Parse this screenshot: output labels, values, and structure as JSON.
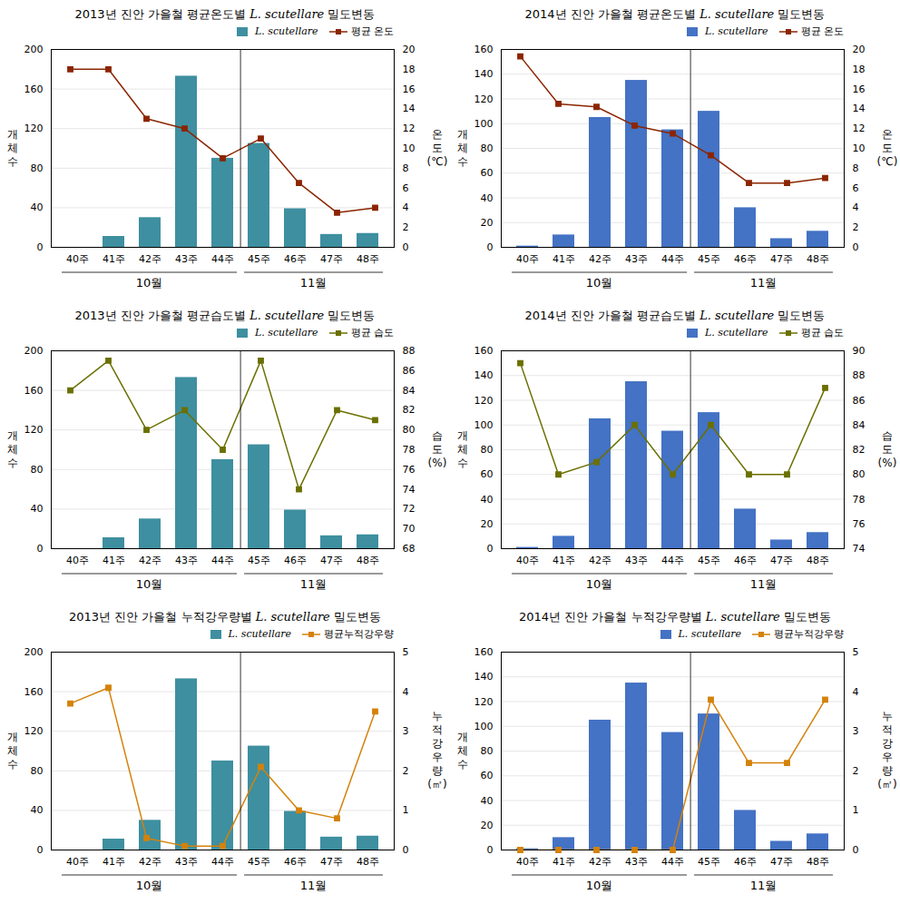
{
  "chart_data": [
    {
      "type": "bar",
      "title": "2013년 진안 가을철 평균온도별 L. scutellare 밀도변동",
      "categories": [
        "40주",
        "41주",
        "42주",
        "43주",
        "44주",
        "45주",
        "46주",
        "47주",
        "48주"
      ],
      "series": [
        {
          "name": "L. scutellare",
          "color": "#3E8FA0",
          "values": [
            0,
            11,
            30,
            173,
            90,
            105,
            39,
            13,
            14
          ]
        },
        {
          "name": "평균 온도",
          "color": "#8B2500",
          "type": "line",
          "marker": "square",
          "axis": "y2",
          "values": [
            18,
            18,
            13,
            12,
            9,
            11,
            6.5,
            3.5,
            4
          ]
        }
      ],
      "ylabel": "개\n체\n수",
      "y2label": "온\n도\n(℃)",
      "ylim": [
        0,
        200
      ],
      "yticks": [
        0,
        40,
        80,
        120,
        160,
        200
      ],
      "y2lim": [
        0,
        20
      ],
      "y2ticks": [
        0,
        2,
        4,
        6,
        8,
        10,
        12,
        14,
        16,
        18,
        20
      ],
      "grid": true,
      "legend": "upper right",
      "annotations": [
        {
          "text": "10월",
          "categories": [
            "40주",
            "41주",
            "42주",
            "43주",
            "44주"
          ]
        },
        {
          "text": "11월",
          "categories": [
            "45주",
            "46주",
            "47주",
            "48주"
          ]
        }
      ]
    },
    {
      "type": "bar",
      "title": "2014년 진안 가을철 평균온도별 L. scutellare 밀도변동",
      "categories": [
        "40주",
        "41주",
        "42주",
        "43주",
        "44주",
        "45주",
        "46주",
        "47주",
        "48주"
      ],
      "series": [
        {
          "name": "L. scutellare",
          "color": "#4472C4",
          "values": [
            1,
            10,
            105,
            135,
            95,
            110,
            32,
            7,
            13
          ]
        },
        {
          "name": "평균 온도",
          "color": "#8B2500",
          "type": "line",
          "marker": "square",
          "axis": "y2",
          "values": [
            19.3,
            14.5,
            14.2,
            12.3,
            11.5,
            9.3,
            6.5,
            6.5,
            7
          ]
        }
      ],
      "ylabel": "개\n체\n수",
      "y2label": "온\n도\n(℃)",
      "ylim": [
        0,
        160
      ],
      "yticks": [
        0,
        20,
        40,
        60,
        80,
        100,
        120,
        140,
        160
      ],
      "y2lim": [
        0,
        20
      ],
      "y2ticks": [
        0,
        2,
        4,
        6,
        8,
        10,
        12,
        14,
        16,
        18,
        20
      ],
      "grid": true,
      "legend": "upper right",
      "annotations": [
        {
          "text": "10월",
          "categories": [
            "40주",
            "41주",
            "42주",
            "43주",
            "44주"
          ]
        },
        {
          "text": "11월",
          "categories": [
            "45주",
            "46주",
            "47주",
            "48주"
          ]
        }
      ]
    },
    {
      "type": "bar",
      "title": "2013년 진안 가을철 평균습도별 L. scutellare 밀도변동",
      "categories": [
        "40주",
        "41주",
        "42주",
        "43주",
        "44주",
        "45주",
        "46주",
        "47주",
        "48주"
      ],
      "series": [
        {
          "name": "L. scutellare",
          "color": "#3E8FA0",
          "values": [
            0,
            11,
            30,
            173,
            90,
            105,
            39,
            13,
            14
          ]
        },
        {
          "name": "평균 습도",
          "color": "#6B7000",
          "type": "line",
          "marker": "square",
          "axis": "y2",
          "values": [
            84,
            87,
            80,
            82,
            78,
            87,
            74,
            82,
            81
          ]
        }
      ],
      "ylabel": "개\n체\n수",
      "y2label": "습\n도\n(%)",
      "ylim": [
        0,
        200
      ],
      "yticks": [
        0,
        40,
        80,
        120,
        160,
        200
      ],
      "y2lim": [
        68,
        88
      ],
      "y2ticks": [
        68,
        70,
        72,
        74,
        76,
        78,
        80,
        82,
        84,
        86,
        88
      ],
      "grid": true,
      "legend": "upper right",
      "annotations": [
        {
          "text": "10월",
          "categories": [
            "40주",
            "41주",
            "42주",
            "43주",
            "44주"
          ]
        },
        {
          "text": "11월",
          "categories": [
            "45주",
            "46주",
            "47주",
            "48주"
          ]
        }
      ]
    },
    {
      "type": "bar",
      "title": "2014년 진안 가을철 평균습도별 L. scutellare 밀도변동",
      "categories": [
        "40주",
        "41주",
        "42주",
        "43주",
        "44주",
        "45주",
        "46주",
        "47주",
        "48주"
      ],
      "series": [
        {
          "name": "L. scutellare",
          "color": "#4472C4",
          "values": [
            1,
            10,
            105,
            135,
            95,
            110,
            32,
            7,
            13
          ]
        },
        {
          "name": "평균 습도",
          "color": "#6B7000",
          "type": "line",
          "marker": "square",
          "axis": "y2",
          "values": [
            89,
            80,
            81,
            84,
            80,
            84,
            80,
            80,
            87
          ]
        }
      ],
      "ylabel": "개\n체\n수",
      "y2label": "습\n도\n(%)",
      "ylim": [
        0,
        160
      ],
      "yticks": [
        0,
        20,
        40,
        60,
        80,
        100,
        120,
        140,
        160
      ],
      "y2lim": [
        74,
        90
      ],
      "y2ticks": [
        74,
        76,
        78,
        80,
        82,
        84,
        86,
        88,
        90
      ],
      "grid": true,
      "legend": "upper right",
      "annotations": [
        {
          "text": "10월",
          "categories": [
            "40주",
            "41주",
            "42주",
            "43주",
            "44주"
          ]
        },
        {
          "text": "11월",
          "categories": [
            "45주",
            "46주",
            "47주",
            "48주"
          ]
        }
      ]
    },
    {
      "type": "bar",
      "title": "2013년 진안 가을철 누적강우량별 L. scutellare 밀도변동",
      "categories": [
        "40주",
        "41주",
        "42주",
        "43주",
        "44주",
        "45주",
        "46주",
        "47주",
        "48주"
      ],
      "series": [
        {
          "name": "L. scutellare",
          "color": "#3E8FA0",
          "values": [
            0,
            11,
            30,
            173,
            90,
            105,
            39,
            13,
            14
          ]
        },
        {
          "name": "평균누적강우량",
          "color": "#D4820A",
          "type": "line",
          "marker": "square",
          "axis": "y2",
          "values": [
            3.7,
            4.1,
            0.3,
            0.1,
            0.1,
            2.1,
            1.0,
            0.8,
            3.5
          ]
        }
      ],
      "ylabel": "개\n체\n수",
      "y2label": "누\n적\n강\n우\n량\n(㎥)",
      "ylim": [
        0,
        200
      ],
      "yticks": [
        0,
        40,
        80,
        120,
        160,
        200
      ],
      "y2lim": [
        0,
        5
      ],
      "y2ticks": [
        0,
        1,
        2,
        3,
        4,
        5
      ],
      "grid": true,
      "legend": "upper right",
      "annotations": [
        {
          "text": "10월",
          "categories": [
            "40주",
            "41주",
            "42주",
            "43주",
            "44주"
          ]
        },
        {
          "text": "11월",
          "categories": [
            "45주",
            "46주",
            "47주",
            "48주"
          ]
        }
      ]
    },
    {
      "type": "bar",
      "title": "2014년 진안 가을철 누적강우량별 L. scutellare 밀도변동",
      "categories": [
        "40주",
        "41주",
        "42주",
        "43주",
        "44주",
        "45주",
        "46주",
        "47주",
        "48주"
      ],
      "series": [
        {
          "name": "L. scutellare",
          "color": "#4472C4",
          "values": [
            1,
            10,
            105,
            135,
            95,
            110,
            32,
            7,
            13
          ]
        },
        {
          "name": "평균누적강우량",
          "color": "#D4820A",
          "type": "line",
          "marker": "square",
          "axis": "y2",
          "values": [
            0.0,
            0.0,
            0.0,
            0.0,
            0.0,
            3.8,
            2.2,
            2.2,
            3.8
          ]
        }
      ],
      "ylabel": "개\n체\n수",
      "y2label": "누\n적\n강\n우\n량\n(㎥)",
      "ylim": [
        0,
        160
      ],
      "yticks": [
        0,
        20,
        40,
        60,
        80,
        100,
        120,
        140,
        160
      ],
      "y2lim": [
        0,
        5
      ],
      "y2ticks": [
        0,
        1,
        2,
        3,
        4,
        5
      ],
      "grid": true,
      "legend": "upper right",
      "annotations": [
        {
          "text": "10월",
          "categories": [
            "40주",
            "41주",
            "42주",
            "43주",
            "44주"
          ]
        },
        {
          "text": "11월",
          "categories": [
            "45주",
            "46주",
            "47주",
            "48주"
          ]
        }
      ]
    }
  ]
}
